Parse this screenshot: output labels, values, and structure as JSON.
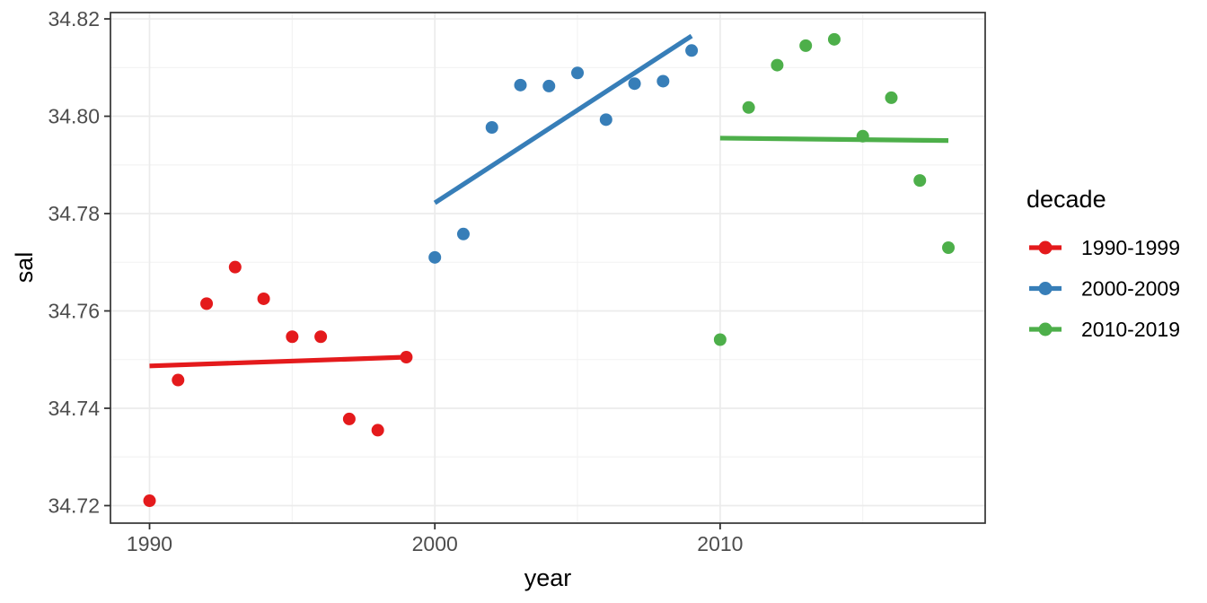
{
  "chart_data": {
    "type": "scatter",
    "title": "",
    "xlabel": "year",
    "ylabel": "sal",
    "legend_title": "decade",
    "legend_position": "right",
    "grid": true,
    "background_color": "#FFFFFF",
    "panel_border_color": "#333333",
    "grid_major_color": "#EBEBEB",
    "grid_minor_color": "#F2F2F2",
    "tick_color": "#333333",
    "tick_label_color": "#4D4D4D",
    "xlim": [
      1988.63,
      2019.29
    ],
    "ylim": [
      34.7164,
      34.8213
    ],
    "x_tick_values": [
      1990,
      2000,
      2010
    ],
    "x_tick_labels": [
      "1990",
      "2000",
      "2010"
    ],
    "x_minor_ticks": [
      1995,
      2005,
      2015
    ],
    "y_tick_values": [
      34.72,
      34.74,
      34.76,
      34.78,
      34.8,
      34.82
    ],
    "y_tick_labels": [
      "34.72",
      "34.74",
      "34.76",
      "34.78",
      "34.80",
      "34.82"
    ],
    "y_minor_ticks": [
      34.73,
      34.75,
      34.77,
      34.79,
      34.81
    ],
    "series": [
      {
        "name": "1990-1999",
        "color": "#E41A1C",
        "x": [
          1990,
          1991,
          1992,
          1993,
          1994,
          1995,
          1996,
          1997,
          1998,
          1999
        ],
        "y": [
          34.721,
          34.7458,
          34.7615,
          34.769,
          34.7625,
          34.7547,
          34.7547,
          34.7378,
          34.7355,
          34.7505
        ],
        "trend": {
          "x": [
            1990,
            1999
          ],
          "y": [
            34.7487,
            34.7505
          ]
        }
      },
      {
        "name": "2000-2009",
        "color": "#377EB8",
        "x": [
          2000,
          2001,
          2002,
          2003,
          2004,
          2005,
          2006,
          2007,
          2008,
          2009
        ],
        "y": [
          34.771,
          34.7758,
          34.7977,
          34.8064,
          34.8062,
          34.8089,
          34.7993,
          34.8067,
          34.8072,
          34.8135
        ],
        "trend": {
          "x": [
            2000,
            2009
          ],
          "y": [
            34.7822,
            34.8165
          ]
        }
      },
      {
        "name": "2010-2019",
        "color": "#4DAF4A",
        "x": [
          2010,
          2011,
          2012,
          2013,
          2014,
          2015,
          2016,
          2017,
          2018
        ],
        "y": [
          34.7541,
          34.8018,
          34.8105,
          34.8145,
          34.8158,
          34.7959,
          34.8038,
          34.7868,
          34.773
        ],
        "trend": {
          "x": [
            2010,
            2018
          ],
          "y": [
            34.7955,
            34.795
          ]
        }
      }
    ]
  }
}
